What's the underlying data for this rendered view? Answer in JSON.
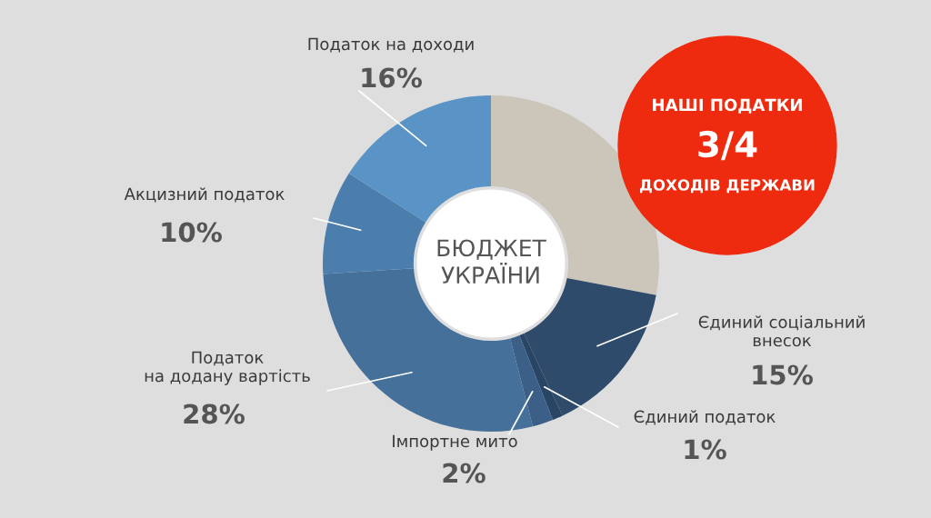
{
  "chart_data": {
    "type": "donut",
    "categories": [
      null,
      "Єдиний соціальний\nвнесок",
      "Єдиний податок",
      "Імпортне мито",
      "Податок\nна додану вартість",
      "Акцизний податок",
      "Податок на доходи"
    ],
    "values": [
      28,
      15,
      1,
      2,
      28,
      10,
      16
    ],
    "value_labels": [
      null,
      "15%",
      "1%",
      "2%",
      "28%",
      "10%",
      "16%"
    ],
    "colors": [
      "#cbc5ba",
      "#2f4b6c",
      "#284563",
      "#3b5f86",
      "#44709a",
      "#4b7eac",
      "#5a93c6"
    ],
    "annotations": [
      "БЮДЖЕТ\nУКРАЇНИ",
      "НАШІ ПОДАТКИ",
      "3/4",
      "ДОХОДІВ ДЕРЖАВИ"
    ],
    "legend": false
  }
}
